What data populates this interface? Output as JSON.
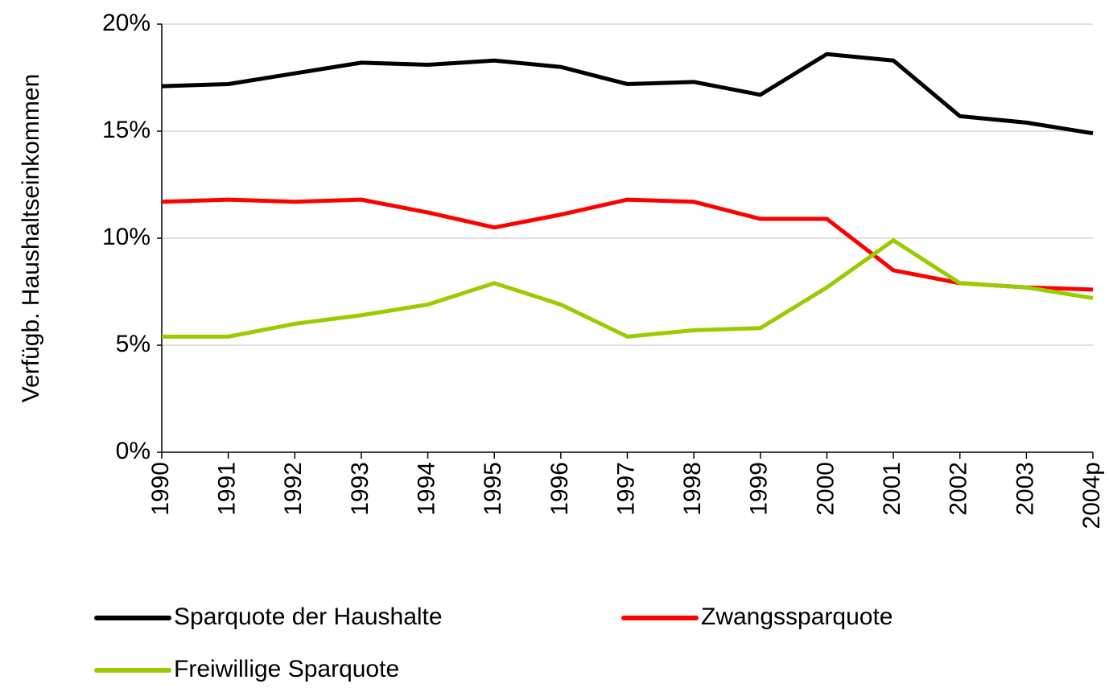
{
  "chart_data": {
    "type": "line",
    "y_label": "Verfügb. Haushaltseinkommen",
    "categories": [
      "1990",
      "1991",
      "1992",
      "1993",
      "1994",
      "1995",
      "1996",
      "1997",
      "1998",
      "1999",
      "2000",
      "2001",
      "2002",
      "2003",
      "2004p"
    ],
    "series": [
      {
        "name": "Sparquote der Haushalte",
        "color": "#000000",
        "values": [
          17.1,
          17.2,
          17.7,
          18.2,
          18.1,
          18.3,
          18.0,
          17.2,
          17.3,
          16.7,
          18.6,
          18.3,
          15.7,
          15.4,
          14.9
        ]
      },
      {
        "name": "Zwangssparquote",
        "color": "#ff0000",
        "values": [
          11.7,
          11.8,
          11.7,
          11.8,
          11.2,
          10.5,
          11.1,
          11.8,
          11.7,
          10.9,
          10.9,
          8.5,
          7.9,
          7.7,
          7.6
        ]
      },
      {
        "name": "Freiwillige Sparquote",
        "color": "#99cc00",
        "values": [
          5.4,
          5.4,
          6.0,
          6.4,
          6.9,
          7.9,
          6.9,
          5.4,
          5.7,
          5.8,
          7.7,
          9.9,
          7.9,
          7.7,
          7.2
        ]
      }
    ],
    "ylim": [
      0,
      20
    ],
    "yticks": [
      {
        "value": 0,
        "label": "0%"
      },
      {
        "value": 5,
        "label": "5%"
      },
      {
        "value": 10,
        "label": "10%"
      },
      {
        "value": 15,
        "label": "15%"
      },
      {
        "value": 20,
        "label": "20%"
      }
    ],
    "grid": true,
    "legend": "bottom"
  }
}
